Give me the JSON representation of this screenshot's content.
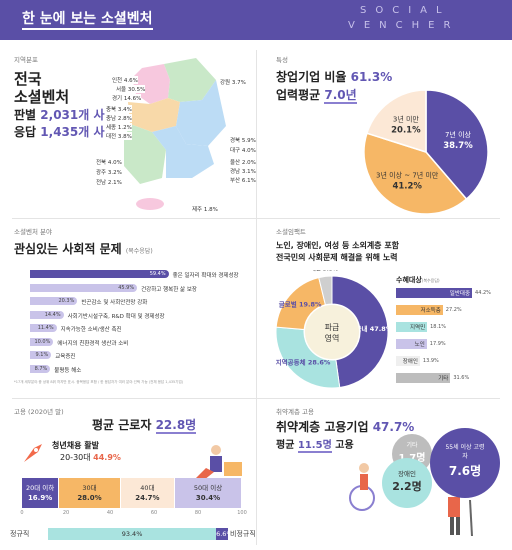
{
  "header": {
    "title": "한 눈에 보는 소셜벤처",
    "logo_line1": "SOCIAL",
    "logo_line2": "VENCHER"
  },
  "map_section": {
    "caption": "지역분포",
    "title1": "전국",
    "title2": "소셜벤처",
    "line1_prefix": "판별",
    "line1_value": "2,031개 사",
    "line2_prefix": "응답",
    "line2_value": "1,435개 사",
    "regions": [
      {
        "label": "인천 4.6%"
      },
      {
        "label": "서울 30.5%"
      },
      {
        "label": "경기 14.6%"
      },
      {
        "label": "강원 3.7%"
      },
      {
        "label": "충북 3.4%"
      },
      {
        "label": "충남 2.8%"
      },
      {
        "label": "세종 1.2%"
      },
      {
        "label": "대전 3.8%"
      },
      {
        "label": "경북 5.9%"
      },
      {
        "label": "대구 4.0%"
      },
      {
        "label": "전북 4.0%"
      },
      {
        "label": "광주 3.2%"
      },
      {
        "label": "전남 2.1%"
      },
      {
        "label": "울산 2.0%"
      },
      {
        "label": "경남 3.1%"
      },
      {
        "label": "부산 6.1%"
      },
      {
        "label": "제주 1.8%"
      }
    ]
  },
  "trait_section": {
    "caption": "특성",
    "line1_prefix": "창업기업 비율",
    "line1_value": "61.3%",
    "line2_prefix": "업력평균",
    "line2_value": "7.0년"
  },
  "interest_section": {
    "caption": "소셜벤처 분야",
    "title": "관심있는 사회적 문제",
    "title_note": "(복수응답)",
    "footnote": "*17개 세부분야 중 상위 8위 까지만 표시. 중복응답 포함 / 한 응답자가 여러 분야 선택 가능 (전체 응답 1,435기업)"
  },
  "impact_section": {
    "caption": "소셜임팩트",
    "title1": "노인, 장애인, 여성 등 소외계층 포함",
    "title2": "전국민의 사회문제 해결을 위해 노력",
    "donut_center1": "파급",
    "donut_center2": "영역",
    "beneficiary_title": "수혜대상",
    "beneficiary_note": "(복수응답)"
  },
  "employment_section": {
    "caption": "고용 (2020년 말)",
    "title_prefix": "평균 근로자",
    "title_value": "22.8명",
    "youth_title": "청년채용 활발",
    "youth_prefix": "20-30대",
    "youth_value": "44.9%",
    "axis_labels": [
      "0",
      "20",
      "40",
      "60",
      "80",
      "100"
    ],
    "regular_label": "정규직",
    "irregular_label": "비정규직"
  },
  "vulnerable_section": {
    "caption": "취약계층 고용",
    "title_prefix": "취약계층 고용기업",
    "title_value": "47.7%",
    "line2_prefix": "평균",
    "line2_value": "11.5명",
    "line2_suffix": "고용",
    "bubbles": [
      {
        "label": "기타",
        "value": "1.7명"
      },
      {
        "label": "장애인",
        "value": "2.2명"
      },
      {
        "label": "55세 이상 고령자",
        "value": "7.6명"
      }
    ]
  },
  "colors": {
    "purple": "#5a4fa6",
    "light_purple": "#c9c3e9",
    "orange": "#f6b766",
    "peach": "#fce8d6",
    "teal": "#a9e3e0",
    "map_pink": "#f7c8de",
    "map_blue": "#bcdcf5",
    "map_orange": "#f8d9a9",
    "map_green": "#c9e8c8"
  },
  "chart_data": [
    {
      "type": "pie",
      "title": "",
      "categories": [
        "7년 이상",
        "3년 이상 ~ 7년 미만",
        "3년 미만"
      ],
      "values": [
        38.7,
        41.2,
        20.1
      ],
      "labels": [
        "38.7%",
        "41.2%",
        "20.1%"
      ],
      "colors": [
        "#5a4fa6",
        "#f6b766",
        "#fce8d6"
      ]
    },
    {
      "type": "bar",
      "orientation": "horizontal",
      "title": "관심있는 사회적 문제",
      "categories": [
        "좋은 일자리 확대와 경제성장",
        "건강하고 행복한 삶 보장",
        "빈곤감소 및 사회안전망 강화",
        "사회기반시설구축, R&D 확대 및 경제성장",
        "지속가능한 소비/생산 촉진",
        "에너지의 친환경적 생산과 소비",
        "교육증진",
        "불평등 해소"
      ],
      "values": [
        59.4,
        45.9,
        20.3,
        14.4,
        11.4,
        10.0,
        9.1,
        8.7
      ],
      "labels": [
        "59.4%",
        "45.9%",
        "20.3%",
        "14.4%",
        "11.4%",
        "10.0%",
        "9.1%",
        "8.7%"
      ],
      "xlim": [
        0,
        60
      ]
    },
    {
      "type": "pie",
      "title": "파급 영역",
      "categories": [
        "국내",
        "지역공동체",
        "글로벌",
        "개인"
      ],
      "values": [
        47.8,
        28.6,
        19.8,
        3.8
      ],
      "labels": [
        "국내 47.8%",
        "지역공동체 28.6%",
        "글로벌 19.8%",
        "개인 3.8%"
      ],
      "colors": [
        "#5a4fa6",
        "#a9e3e0",
        "#f6b766",
        "#cfcfcf"
      ]
    },
    {
      "type": "bar",
      "orientation": "horizontal",
      "title": "수혜대상",
      "categories": [
        "일반대중",
        "저소득층",
        "지역민",
        "노인",
        "장애인",
        "기타"
      ],
      "values": [
        44.2,
        27.2,
        18.1,
        17.9,
        13.9,
        31.6
      ],
      "labels": [
        "44.2%",
        "27.2%",
        "18.1%",
        "17.9%",
        "13.9%",
        "31.6%"
      ],
      "colors": [
        "#5a4fa6",
        "#f6b766",
        "#a9e3e0",
        "#c9c3e9",
        "#efefef",
        "#bdbdbd"
      ],
      "xlim": [
        0,
        50
      ]
    },
    {
      "type": "bar",
      "orientation": "horizontal",
      "stacked": true,
      "title": "연령별 근로자",
      "categories": [
        "20대 이하",
        "30대",
        "40대",
        "50대 이상"
      ],
      "values": [
        16.9,
        28.0,
        24.7,
        30.4
      ],
      "labels": [
        "16.9%",
        "28.0%",
        "24.7%",
        "30.4%"
      ],
      "colors": [
        "#5a4fa6",
        "#f6b766",
        "#fce8d6",
        "#c9c3e9"
      ],
      "xlim": [
        0,
        100
      ]
    },
    {
      "type": "bar",
      "orientation": "horizontal",
      "stacked": true,
      "title": "고용형태",
      "categories": [
        "정규직",
        "비정규직"
      ],
      "values": [
        93.4,
        6.6
      ],
      "labels": [
        "93.4%",
        "6.6%"
      ],
      "colors": [
        "#a9e3e0",
        "#5a4fa6"
      ],
      "xlim": [
        0,
        100
      ]
    }
  ]
}
